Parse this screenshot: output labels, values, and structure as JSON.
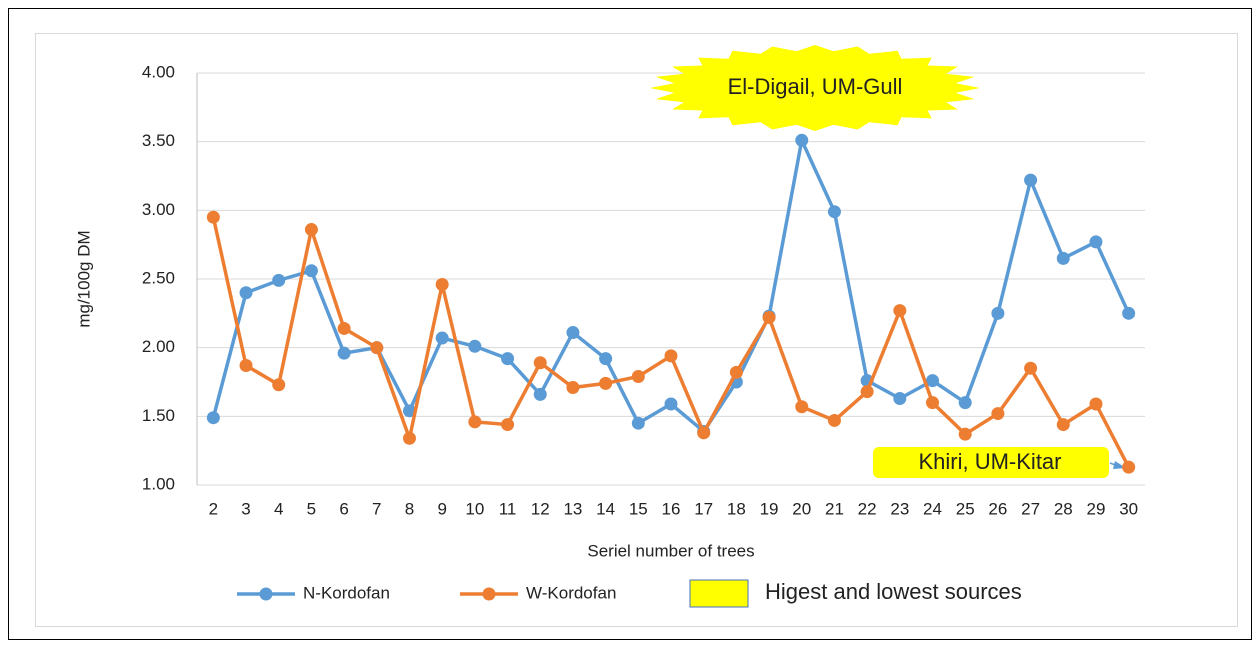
{
  "chart_data": {
    "type": "line",
    "y_label": "mg/100g DM",
    "x_label": "Seriel number of trees",
    "categories": [
      "2",
      "3",
      "4",
      "5",
      "6",
      "7",
      "8",
      "9",
      "10",
      "11",
      "12",
      "13",
      "14",
      "15",
      "16",
      "17",
      "18",
      "19",
      "20",
      "21",
      "22",
      "23",
      "24",
      "25",
      "26",
      "27",
      "28",
      "29",
      "30"
    ],
    "series": [
      {
        "name": "N-Kordofan",
        "color": "#5b9bd5",
        "values": [
          1.49,
          2.4,
          2.49,
          2.56,
          1.96,
          2.0,
          1.54,
          2.07,
          2.01,
          1.92,
          1.66,
          2.11,
          1.92,
          1.45,
          1.59,
          1.39,
          1.75,
          2.23,
          3.51,
          2.99,
          1.76,
          1.63,
          1.76,
          1.6,
          2.25,
          3.22,
          2.65,
          2.77,
          2.25
        ]
      },
      {
        "name": "W-Kordofan",
        "color": "#ed7d31",
        "values": [
          2.95,
          1.87,
          1.73,
          2.86,
          2.14,
          2.0,
          1.34,
          2.46,
          1.46,
          1.44,
          1.89,
          1.71,
          1.74,
          1.79,
          1.94,
          1.38,
          1.82,
          2.22,
          1.57,
          1.47,
          1.68,
          2.27,
          1.6,
          1.37,
          1.52,
          1.85,
          1.44,
          1.59,
          1.13
        ]
      }
    ],
    "ylim": [
      1,
      4
    ],
    "yticks": [
      {
        "value": 1,
        "label": "1.00"
      },
      {
        "value": 1.5,
        "label": "1.50"
      },
      {
        "value": 2,
        "label": "2.00"
      },
      {
        "value": 2.5,
        "label": "2.50"
      },
      {
        "value": 3,
        "label": "3.00"
      },
      {
        "value": 3.5,
        "label": "3.50"
      },
      {
        "value": 4,
        "label": "4.00"
      }
    ],
    "grid": true,
    "highlight": {
      "label": "Higest and lowest sources",
      "color": "#ffff00"
    },
    "annotations": [
      "El-Digail, UM-Gull",
      "Khiri, UM-Kitar"
    ]
  }
}
